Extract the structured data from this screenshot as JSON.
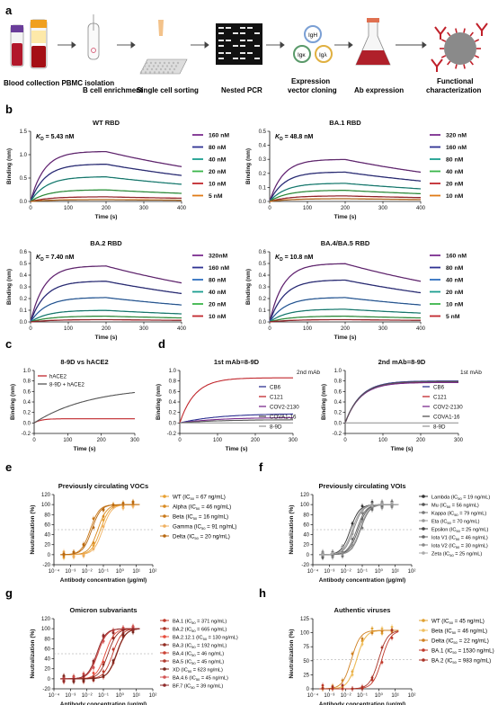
{
  "panel_letters": [
    "a",
    "b",
    "c",
    "d",
    "e",
    "f",
    "g",
    "h"
  ],
  "workflow": {
    "steps": [
      "Blood collection\nPBMC isolation",
      "B cell enrichment",
      "Single cell sorting",
      "Nested PCR",
      "Expression\nvector cloning",
      "Ab expression",
      "Functional\ncharacterization"
    ],
    "vector_labels": [
      "IgH",
      "Igκ",
      "Igλ"
    ]
  },
  "colors": {
    "purple": "#7b2d8e",
    "navy": "#2e3192",
    "blue": "#2f6fbf",
    "teal": "#1a9e8f",
    "green": "#3ab54a",
    "red": "#c1272d",
    "orange": "#e07b16",
    "fit": "#1a1a1a",
    "grey": "#555555",
    "lightgrey": "#9a9a9a",
    "darkred": "#8b1a1a"
  },
  "chart_data": [
    {
      "id": "b1",
      "type": "line",
      "title": "WT RBD",
      "annotation": "K_D = 5.43 nM",
      "xlabel": "Time (s)",
      "ylabel": "Binding (nm)",
      "xlim": [
        0,
        400
      ],
      "ylim": [
        0,
        1.5
      ],
      "xticks": [
        "0",
        "100",
        "200",
        "300",
        "400"
      ],
      "yticks": [
        "0.0",
        "0.5",
        "1.0",
        "1.5"
      ],
      "assoc_end": 200,
      "series": [
        {
          "name": "160 nM",
          "plateau": 1.07,
          "color": "purple"
        },
        {
          "name": "80 nM",
          "plateau": 0.8,
          "color": "navy"
        },
        {
          "name": "40 nM",
          "plateau": 0.53,
          "color": "teal"
        },
        {
          "name": "20 nM",
          "plateau": 0.25,
          "color": "green"
        },
        {
          "name": "10 nM",
          "plateau": 0.1,
          "color": "red"
        },
        {
          "name": "5 nM",
          "plateau": 0.04,
          "color": "orange"
        }
      ]
    },
    {
      "id": "b2",
      "type": "line",
      "title": "BA.1 RBD",
      "annotation": "K_D = 48.8 nM",
      "xlabel": "Time (s)",
      "ylabel": "Binding (nm)",
      "xlim": [
        0,
        400
      ],
      "ylim": [
        0,
        0.5
      ],
      "xticks": [
        "0",
        "100",
        "200",
        "300",
        "400"
      ],
      "yticks": [
        "0.0",
        "0.1",
        "0.2",
        "0.3",
        "0.4",
        "0.5"
      ],
      "assoc_end": 200,
      "series": [
        {
          "name": "320 nM",
          "plateau": 0.3,
          "color": "purple"
        },
        {
          "name": "160 nM",
          "plateau": 0.21,
          "color": "navy"
        },
        {
          "name": "80 nM",
          "plateau": 0.13,
          "color": "teal"
        },
        {
          "name": "40 nM",
          "plateau": 0.08,
          "color": "green"
        },
        {
          "name": "20 nM",
          "plateau": 0.04,
          "color": "red"
        },
        {
          "name": "10 nM",
          "plateau": 0.02,
          "color": "orange"
        }
      ]
    },
    {
      "id": "b3",
      "type": "line",
      "title": "BA.2 RBD",
      "annotation": "K_D = 7.40 nM",
      "xlabel": "Time (s)",
      "ylabel": "Binding (nm)",
      "xlim": [
        0,
        400
      ],
      "ylim": [
        0,
        0.6
      ],
      "xticks": [
        "0",
        "100",
        "200",
        "300",
        "400"
      ],
      "yticks": [
        "0.0",
        "0.1",
        "0.2",
        "0.3",
        "0.4",
        "0.5",
        "0.6"
      ],
      "assoc_end": 200,
      "series": [
        {
          "name": "320nM",
          "plateau": 0.48,
          "color": "purple"
        },
        {
          "name": "160 nM",
          "plateau": 0.35,
          "color": "navy"
        },
        {
          "name": "80 nM",
          "plateau": 0.21,
          "color": "blue"
        },
        {
          "name": "40 nM",
          "plateau": 0.1,
          "color": "teal"
        },
        {
          "name": "20 nM",
          "plateau": 0.05,
          "color": "green"
        },
        {
          "name": "10 nM",
          "plateau": 0.02,
          "color": "red"
        }
      ]
    },
    {
      "id": "b4",
      "type": "line",
      "title": "BA.4/BA.5 RBD",
      "annotation": "K_D = 10.8 nM",
      "xlabel": "Time (s)",
      "ylabel": "Binding (nm)",
      "xlim": [
        0,
        400
      ],
      "ylim": [
        0,
        0.6
      ],
      "xticks": [
        "0",
        "100",
        "200",
        "300",
        "400"
      ],
      "yticks": [
        "0.0",
        "0.1",
        "0.2",
        "0.3",
        "0.4",
        "0.5",
        "0.6"
      ],
      "assoc_end": 200,
      "series": [
        {
          "name": "160 nM",
          "plateau": 0.5,
          "color": "purple"
        },
        {
          "name": "80 nM",
          "plateau": 0.36,
          "color": "navy"
        },
        {
          "name": "40 nM",
          "plateau": 0.21,
          "color": "blue"
        },
        {
          "name": "20 nM",
          "plateau": 0.11,
          "color": "teal"
        },
        {
          "name": "10 nM",
          "plateau": 0.05,
          "color": "green"
        },
        {
          "name": "5 nM",
          "plateau": 0.02,
          "color": "red"
        }
      ]
    },
    {
      "id": "c",
      "type": "line",
      "title": "8-9D vs hACE2",
      "xlabel": "Time (s)",
      "ylabel": "Binding (nm)",
      "xlim": [
        0,
        300
      ],
      "ylim": [
        -0.2,
        1.0
      ],
      "xticks": [
        "0",
        "100",
        "200",
        "300"
      ],
      "yticks": [
        "-0.2",
        "0.0",
        "0.2",
        "0.4",
        "0.6",
        "0.8",
        "1.0"
      ],
      "series": [
        {
          "name": "hACE2",
          "final": 0.08,
          "rate": 0.05,
          "color": "red"
        },
        {
          "name": "8-9D + hACE2",
          "final": 0.58,
          "rate": 0.006,
          "color": "grey"
        }
      ]
    },
    {
      "id": "d1",
      "type": "line",
      "title": "1st mAb=8-9D",
      "legend_title": "2nd mAb",
      "xlabel": "Time (s)",
      "ylabel": "Binding (nm)",
      "xlim": [
        0,
        300
      ],
      "ylim": [
        -0.2,
        1.0
      ],
      "xticks": [
        "0",
        "100",
        "200",
        "300"
      ],
      "yticks": [
        "-0.2",
        "0.0",
        "0.2",
        "0.4",
        "0.6",
        "0.8",
        "1.0"
      ],
      "series": [
        {
          "name": "CB6",
          "final": 0.17,
          "rate": 0.01,
          "color": "navy"
        },
        {
          "name": "C121",
          "final": 0.86,
          "rate": 0.025,
          "color": "red"
        },
        {
          "name": "COV2-2130",
          "final": 0.1,
          "rate": 0.01,
          "color": "purple"
        },
        {
          "name": "COVA1-16",
          "final": 0.06,
          "rate": 0.01,
          "color": "grey"
        },
        {
          "name": "8-9D",
          "final": 0.0,
          "rate": 0.01,
          "color": "lightgrey"
        }
      ]
    },
    {
      "id": "d2",
      "type": "line",
      "title": "2nd mAb=8-9D",
      "legend_title": "1st mAb",
      "xlabel": "Time (s)",
      "ylabel": "Binding (nm)",
      "xlim": [
        0,
        300
      ],
      "ylim": [
        -0.2,
        1.0
      ],
      "xticks": [
        "0",
        "100",
        "200",
        "300"
      ],
      "yticks": [
        "-0.2",
        "0.0",
        "0.2",
        "0.4",
        "0.6",
        "0.8",
        "1.0"
      ],
      "series": [
        {
          "name": "CB6",
          "final": 0.8,
          "rate": 0.025,
          "color": "navy"
        },
        {
          "name": "C121",
          "final": 0.78,
          "rate": 0.025,
          "color": "red"
        },
        {
          "name": "COV2-2130",
          "final": 0.77,
          "rate": 0.025,
          "color": "purple"
        },
        {
          "name": "COVA1-16",
          "final": 0.79,
          "rate": 0.025,
          "color": "grey"
        },
        {
          "name": "8-9D",
          "final": 0.0,
          "rate": 0.01,
          "color": "lightgrey"
        }
      ]
    },
    {
      "id": "e",
      "type": "scatter",
      "title": "Previously circulating VOCs",
      "xlabel": "Antibody concentration (μg/ml)",
      "ylabel": "Neutralization (%)",
      "xlim": [
        -4,
        2
      ],
      "ylim": [
        -20,
        120
      ],
      "ref_line": 50,
      "xticks": [
        "10⁻⁴",
        "10⁻³",
        "10⁻²",
        "10⁻¹",
        "10⁰",
        "10¹",
        "10²"
      ],
      "yticks": [
        "-20",
        "0",
        "20",
        "40",
        "60",
        "80",
        "100",
        "120"
      ],
      "series": [
        {
          "name": "WT (IC50 = 67 ng/mL)",
          "ic50": 0.067,
          "color": "#e8a030"
        },
        {
          "name": "Alpha (IC50 = 46 ng/mL)",
          "ic50": 0.046,
          "color": "#d98a20"
        },
        {
          "name": "Beta (IC50 = 16 ng/mL)",
          "ic50": 0.016,
          "color": "#c97818"
        },
        {
          "name": "Gamma (IC50 = 91 ng/mL)",
          "ic50": 0.091,
          "color": "#f0b060"
        },
        {
          "name": "Delta (IC50 = 20 ng/mL)",
          "ic50": 0.02,
          "color": "#b86810"
        }
      ]
    },
    {
      "id": "f",
      "type": "scatter",
      "title": "Previously circulating VOIs",
      "xlabel": "Antibody concentration (μg/ml)",
      "ylabel": "Neutralization (%)",
      "xlim": [
        -4,
        2
      ],
      "ylim": [
        -20,
        120
      ],
      "ref_line": 50,
      "xticks": [
        "10⁻⁴",
        "10⁻³",
        "10⁻²",
        "10⁻¹",
        "10⁰",
        "10¹",
        "10²"
      ],
      "yticks": [
        "-20",
        "0",
        "20",
        "40",
        "60",
        "80",
        "100",
        "120"
      ],
      "series": [
        {
          "name": "Lambda (IC50 = 19 ng/mL)",
          "ic50": 0.019,
          "color": "#333333"
        },
        {
          "name": "Mu (IC50 = 56 ng/mL)",
          "ic50": 0.056,
          "color": "#555555"
        },
        {
          "name": "Kappa (IC50 = 79 ng/mL)",
          "ic50": 0.079,
          "color": "#777777"
        },
        {
          "name": "Eta (IC50 = 70 ng/mL)",
          "ic50": 0.07,
          "color": "#999999"
        },
        {
          "name": "Epsilon (IC50 = 25 ng/mL)",
          "ic50": 0.025,
          "color": "#444444"
        },
        {
          "name": "Iota V1 (IC50 = 46 ng/mL)",
          "ic50": 0.046,
          "color": "#666666"
        },
        {
          "name": "Iota V2 (IC50 = 30 ng/mL)",
          "ic50": 0.03,
          "color": "#888888"
        },
        {
          "name": "Zeta (IC50 = 25 ng/mL)",
          "ic50": 0.025,
          "color": "#aaaaaa"
        }
      ]
    },
    {
      "id": "g",
      "type": "scatter",
      "title": "Omicron subvariants",
      "xlabel": "Antibody concentration (μg/ml)",
      "ylabel": "Neutralization (%)",
      "xlim": [
        -4,
        2
      ],
      "ylim": [
        -20,
        120
      ],
      "ref_line": 50,
      "xticks": [
        "10⁻⁴",
        "10⁻³",
        "10⁻²",
        "10⁻¹",
        "10⁰",
        "10¹",
        "10²"
      ],
      "yticks": [
        "-20",
        "0",
        "20",
        "40",
        "60",
        "80",
        "100",
        "120"
      ],
      "series": [
        {
          "name": "BA.1 (IC50 = 371 ng/mL)",
          "ic50": 0.371,
          "color": "#c0392b"
        },
        {
          "name": "BA.2 (IC50 = 665 ng/mL)",
          "ic50": 0.665,
          "color": "#a93226"
        },
        {
          "name": "BA.2.12.1 (IC50 = 130 ng/mL)",
          "ic50": 0.13,
          "color": "#e74c3c"
        },
        {
          "name": "BA.3 (IC50 = 192 ng/mL)",
          "ic50": 0.192,
          "color": "#922b21"
        },
        {
          "name": "BA.4 (IC50 = 46 ng/mL)",
          "ic50": 0.046,
          "color": "#cb4335"
        },
        {
          "name": "BA.5 (IC50 = 45 ng/mL)",
          "ic50": 0.045,
          "color": "#b03a2e"
        },
        {
          "name": "XD (IC50 = 623 ng/mL)",
          "ic50": 0.623,
          "color": "#78281f"
        },
        {
          "name": "BA.4.6 (IC50 = 45 ng/mL)",
          "ic50": 0.045,
          "color": "#d35454"
        },
        {
          "name": "BF.7 (IC50 = 39 ng/mL)",
          "ic50": 0.039,
          "color": "#8e2a2a"
        }
      ]
    },
    {
      "id": "h",
      "type": "scatter",
      "title": "Authentic viruses",
      "xlabel": "Antibody concentration (μg/ml)",
      "ylabel": "Neutralization (%)",
      "xlim": [
        -4,
        2
      ],
      "ylim": [
        0,
        120
      ],
      "ref_line": 50,
      "xticks": [
        "10⁻⁴",
        "10⁻³",
        "10⁻²",
        "10⁻¹",
        "10⁰",
        "10¹",
        "10²"
      ],
      "yticks": [
        "0",
        "25",
        "50",
        "75",
        "100",
        "125"
      ],
      "series": [
        {
          "name": "WT (IC50 = 45 ng/mL)",
          "ic50": 0.045,
          "color": "#e0a030"
        },
        {
          "name": "Beta (IC50 = 46 ng/mL)",
          "ic50": 0.046,
          "color": "#f0c060"
        },
        {
          "name": "Delta (IC50 = 22 ng/mL)",
          "ic50": 0.022,
          "color": "#d08020"
        },
        {
          "name": "BA.1 (IC50 = 1530 ng/mL)",
          "ic50": 1.53,
          "color": "#c0392b"
        },
        {
          "name": "BA.2 (IC50 = 983 ng/mL)",
          "ic50": 0.983,
          "color": "#a93226"
        }
      ]
    }
  ]
}
